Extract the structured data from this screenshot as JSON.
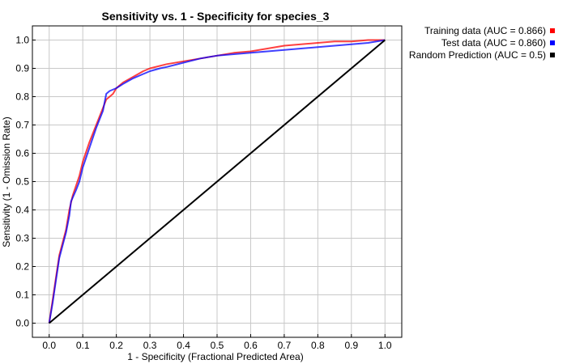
{
  "chart_data": {
    "type": "line",
    "title": "Sensitivity vs. 1 - Specificity for species_3",
    "xlabel": "1 - Specificity  (Fractional Predicted Area)",
    "ylabel": "Sensitivity  (1 - Omission Rate)",
    "xlim": [
      -0.05,
      1.05
    ],
    "ylim": [
      -0.05,
      1.05
    ],
    "xticks": [
      0.0,
      0.1,
      0.2,
      0.3,
      0.4,
      0.5,
      0.6,
      0.7,
      0.8,
      0.9,
      1.0
    ],
    "yticks": [
      0.0,
      0.1,
      0.2,
      0.3,
      0.4,
      0.5,
      0.6,
      0.7,
      0.8,
      0.9,
      1.0
    ],
    "xtick_labels": [
      "0.0",
      "0.1",
      "0.2",
      "0.3",
      "0.4",
      "0.5",
      "0.6",
      "0.7",
      "0.8",
      "0.9",
      "1.0"
    ],
    "ytick_labels": [
      "0.0",
      "0.1",
      "0.2",
      "0.3",
      "0.4",
      "0.5",
      "0.6",
      "0.7",
      "0.8",
      "0.9",
      "1.0"
    ],
    "grid": true,
    "legend_position": "outside-top-right",
    "series": [
      {
        "name": "Training data (AUC = 0.866)",
        "color": "#ff0000",
        "x": [
          0.0,
          0.01,
          0.02,
          0.03,
          0.05,
          0.06,
          0.07,
          0.09,
          0.1,
          0.12,
          0.14,
          0.16,
          0.17,
          0.19,
          0.2,
          0.22,
          0.25,
          0.28,
          0.3,
          0.35,
          0.4,
          0.45,
          0.5,
          0.55,
          0.6,
          0.65,
          0.7,
          0.75,
          0.8,
          0.85,
          0.9,
          0.95,
          1.0
        ],
        "y": [
          0.0,
          0.08,
          0.16,
          0.24,
          0.33,
          0.4,
          0.45,
          0.52,
          0.57,
          0.64,
          0.7,
          0.76,
          0.79,
          0.81,
          0.83,
          0.85,
          0.87,
          0.89,
          0.9,
          0.915,
          0.925,
          0.935,
          0.945,
          0.955,
          0.96,
          0.97,
          0.98,
          0.985,
          0.99,
          0.995,
          0.995,
          1.0,
          1.0
        ]
      },
      {
        "name": "Test data (AUC = 0.860)",
        "color": "#0000ff",
        "x": [
          0.0,
          0.01,
          0.02,
          0.03,
          0.05,
          0.06,
          0.065,
          0.08,
          0.09,
          0.1,
          0.12,
          0.14,
          0.16,
          0.17,
          0.18,
          0.2,
          0.22,
          0.25,
          0.28,
          0.3,
          0.33,
          0.35,
          0.4,
          0.45,
          0.5,
          0.55,
          0.6,
          0.65,
          0.7,
          0.75,
          0.8,
          0.85,
          0.9,
          0.95,
          1.0
        ],
        "y": [
          0.0,
          0.07,
          0.15,
          0.23,
          0.32,
          0.38,
          0.43,
          0.47,
          0.5,
          0.55,
          0.62,
          0.69,
          0.75,
          0.81,
          0.82,
          0.83,
          0.845,
          0.865,
          0.88,
          0.89,
          0.9,
          0.905,
          0.92,
          0.935,
          0.945,
          0.95,
          0.955,
          0.96,
          0.965,
          0.97,
          0.975,
          0.98,
          0.985,
          0.99,
          1.0
        ]
      },
      {
        "name": "Random Prediction (AUC = 0.5)",
        "color": "#000000",
        "x": [
          0.0,
          1.0
        ],
        "y": [
          0.0,
          1.0
        ]
      }
    ]
  }
}
